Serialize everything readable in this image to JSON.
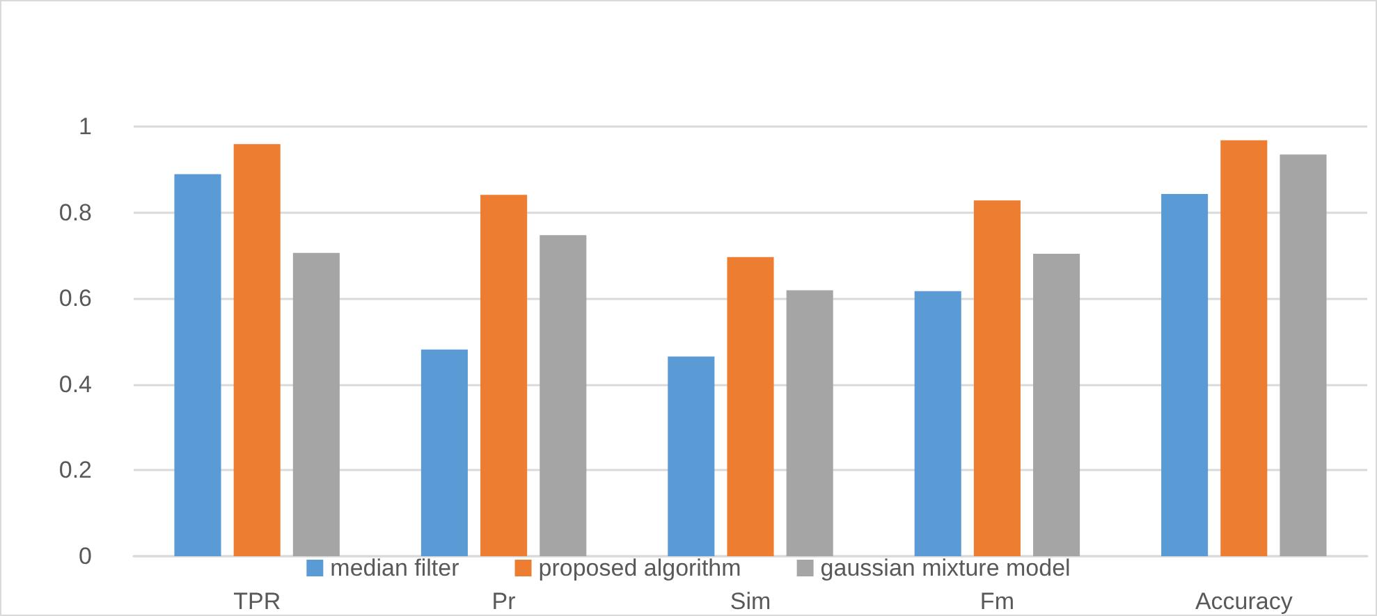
{
  "chart_data": {
    "type": "bar",
    "categories": [
      "TPR",
      "Pr",
      "Sim",
      "Fm",
      "Accuracy"
    ],
    "series": [
      {
        "name": "median filter",
        "color": "#5b9bd5",
        "values": [
          0.889,
          0.481,
          0.465,
          0.617,
          0.843
        ]
      },
      {
        "name": "proposed algorithm",
        "color": "#ed7d31",
        "values": [
          0.959,
          0.841,
          0.696,
          0.828,
          0.968
        ]
      },
      {
        "name": "gaussian mixture model",
        "color": "#a5a5a5",
        "values": [
          0.706,
          0.747,
          0.619,
          0.704,
          0.935
        ]
      }
    ],
    "ylim": [
      0,
      1
    ],
    "yticks": [
      0,
      0.2,
      0.4,
      0.6,
      0.8,
      1
    ],
    "grid": "y",
    "legend": "bottom"
  }
}
